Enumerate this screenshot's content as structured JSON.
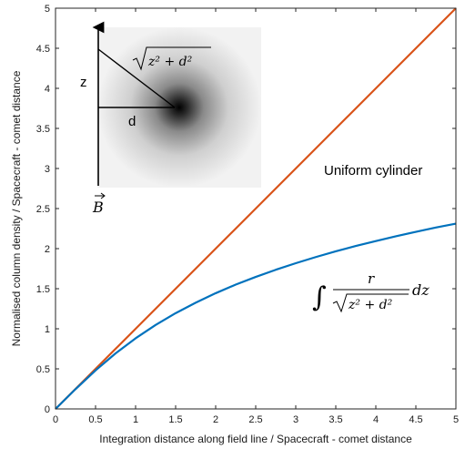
{
  "chart_data": {
    "type": "line",
    "xlabel": "Integration distance along field line / Spacecraft - comet distance",
    "ylabel": "Normalised column density / Spacecraft - comet distance",
    "xlim": [
      0,
      5
    ],
    "ylim": [
      0,
      5
    ],
    "xticks": [
      "0",
      "0.5",
      "1",
      "1.5",
      "2",
      "2.5",
      "3",
      "3.5",
      "4",
      "4.5",
      "5"
    ],
    "yticks": [
      "0",
      "0.5",
      "1",
      "1.5",
      "2",
      "2.5",
      "3",
      "3.5",
      "4",
      "4.5",
      "5"
    ],
    "grid": false,
    "series": [
      {
        "name": "Uniform cylinder",
        "color": "#d95319",
        "x": [
          0,
          5
        ],
        "y": [
          0,
          5
        ]
      },
      {
        "name": "",
        "color": "#0072bd",
        "x": [
          0,
          0.25,
          0.5,
          0.75,
          1,
          1.25,
          1.5,
          1.75,
          2,
          2.25,
          2.5,
          2.75,
          3,
          3.25,
          3.5,
          3.75,
          4,
          4.25,
          4.5,
          4.75,
          5
        ],
        "y": [
          0,
          0.247,
          0.481,
          0.693,
          0.881,
          1.048,
          1.195,
          1.325,
          1.444,
          1.551,
          1.647,
          1.736,
          1.818,
          1.895,
          1.966,
          2.033,
          2.095,
          2.154,
          2.21,
          2.263,
          2.312
        ]
      }
    ],
    "annotations": {
      "uniform_label": "Uniform cylinder",
      "integral_numerator": "r",
      "integral_denominator": "z² + d²",
      "integral_dz": "dz"
    },
    "inset": {
      "z_label": "z",
      "d_label": "d",
      "hyp_label": "z² + d²",
      "b_label": "B"
    }
  }
}
